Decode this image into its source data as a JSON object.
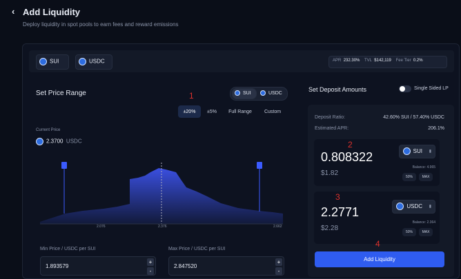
{
  "header": {
    "title": "Add Liquidity",
    "subtitle": "Deploy liquidity in spot pools to earn fees and reward emissions"
  },
  "pair": {
    "base": "SUI",
    "separator": "-",
    "quote": "USDC"
  },
  "stats": [
    {
      "label": "APR",
      "value": "232.30%"
    },
    {
      "label": "TVL",
      "value": "$142,119"
    },
    {
      "label": "Fee Tier",
      "value": "0.2%"
    }
  ],
  "price_range": {
    "title": "Set Price Range",
    "toggle": [
      "SUI",
      "USDC"
    ],
    "ranges": [
      "±20%",
      "±5%",
      "Full Range",
      "Custom"
    ],
    "current_price_label": "Current Price",
    "current_price": "2.3700",
    "current_price_unit": "USDC",
    "axis_labels": [
      "2.076",
      "2.376",
      "2.662"
    ],
    "min_label": "Min Price / USDC per SUI",
    "min_value": "1.893579",
    "max_label": "Max Price / USDC per SUI",
    "max_value": "2.847520",
    "plus": "+",
    "minus": "-"
  },
  "deposit": {
    "title": "Set Deposit Amounts",
    "single_sided": "Single Sided LP",
    "ratio_label": "Deposit Ratio:",
    "ratio_value": "42.60% SUI / 57.40% USDC",
    "apr_label": "Estimated APR:",
    "apr_value": "206.1%",
    "cards": [
      {
        "amount": "0.808322",
        "usd": "$1.82",
        "token": "SUI",
        "balance": "Balance: 4.965",
        "half": "50%",
        "max": "MAX"
      },
      {
        "amount": "2.2771",
        "usd": "$2.28",
        "token": "USDC",
        "balance": "Balance: 2.364",
        "half": "50%",
        "max": "MAX"
      }
    ],
    "button": "Add Liquidity"
  },
  "annotations": [
    "1",
    "2",
    "3",
    "4"
  ]
}
